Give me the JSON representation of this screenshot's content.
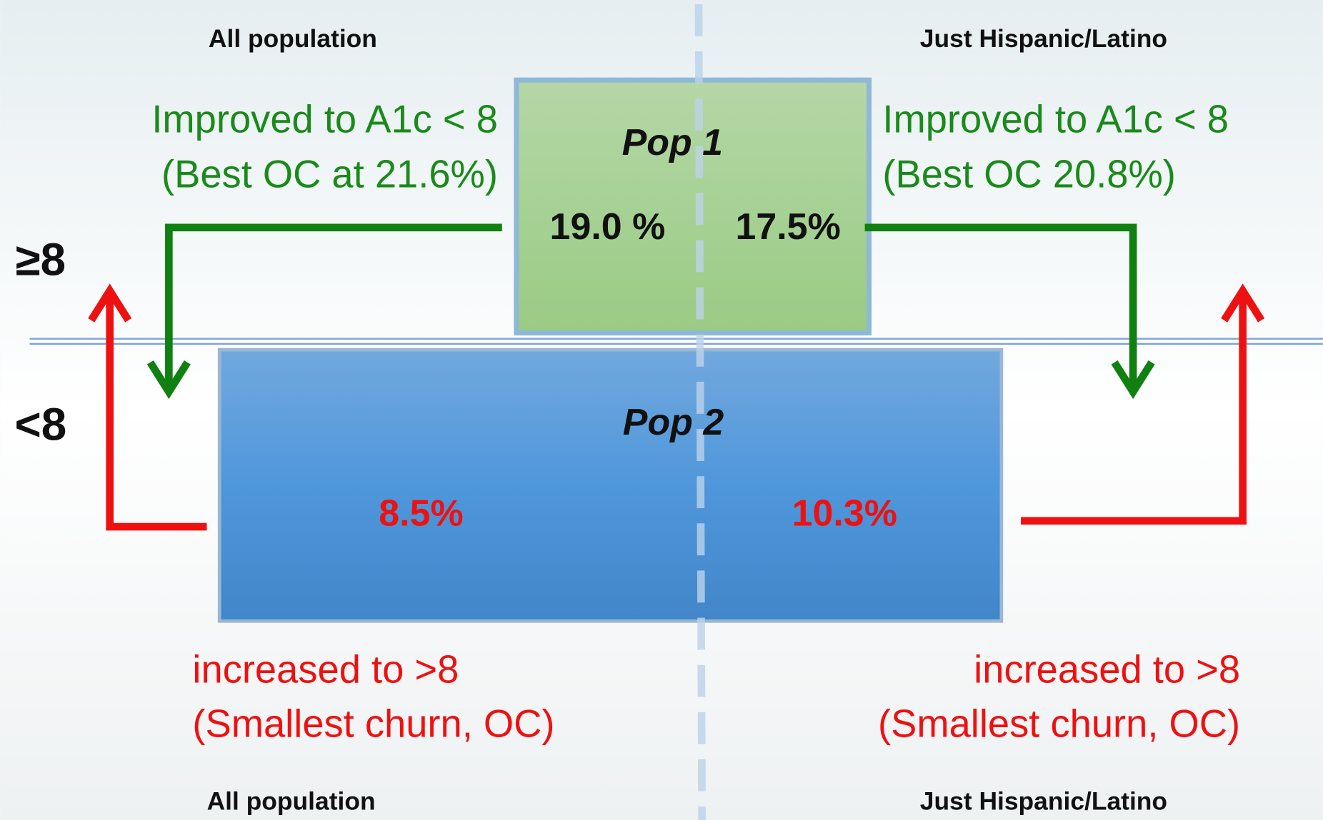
{
  "header": {
    "left": "All population",
    "right": "Just Hispanic/Latino"
  },
  "footer": {
    "left": "All population",
    "right": "Just Hispanic/Latino"
  },
  "levels": {
    "high": "≥8",
    "low": "<8"
  },
  "pop1": {
    "label": "Pop 1",
    "left": "19.0 %",
    "right": "17.5%"
  },
  "pop2": {
    "label": "Pop 2",
    "left": "8.5%",
    "right": "10.3%"
  },
  "improved": {
    "left": [
      "Improved to A1c < 8",
      "(Best OC at 21.6%)"
    ],
    "right": [
      "Improved to A1c < 8",
      "(Best OC 20.8%)"
    ]
  },
  "increased": {
    "left": [
      "increased to >8",
      "(Smallest churn, OC)"
    ],
    "right": [
      "increased to >8",
      "(Smallest churn, OC)"
    ]
  }
}
